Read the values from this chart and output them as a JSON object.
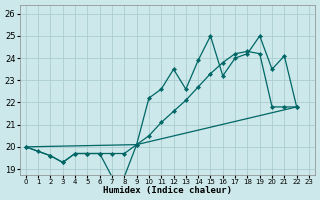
{
  "xlabel": "Humidex (Indice chaleur)",
  "xlim": [
    -0.5,
    23.5
  ],
  "ylim": [
    18.75,
    26.4
  ],
  "xticks": [
    0,
    1,
    2,
    3,
    4,
    5,
    6,
    7,
    8,
    9,
    10,
    11,
    12,
    13,
    14,
    15,
    16,
    17,
    18,
    19,
    20,
    21,
    22,
    23
  ],
  "yticks": [
    19,
    20,
    21,
    22,
    23,
    24,
    25,
    26
  ],
  "bg_color": "#cce8ea",
  "grid_color": "#aacdd0",
  "line_color": "#006666",
  "line1_x": [
    0,
    1,
    2,
    3,
    4,
    5,
    6,
    7,
    8,
    9,
    10,
    11,
    12,
    13,
    14,
    15,
    16,
    17,
    18,
    19,
    20,
    21,
    22
  ],
  "line1_y": [
    20.0,
    19.8,
    19.6,
    19.3,
    19.7,
    19.7,
    19.7,
    18.65,
    18.65,
    20.1,
    22.2,
    22.6,
    23.5,
    22.6,
    23.9,
    25.0,
    23.2,
    24.0,
    24.2,
    25.0,
    23.5,
    24.1,
    21.8
  ],
  "line2_x": [
    0,
    2,
    3,
    4,
    5,
    6,
    7,
    8,
    9,
    10,
    11,
    12,
    13,
    14,
    15,
    16,
    17,
    18,
    19,
    20,
    21,
    22
  ],
  "line2_y": [
    20.0,
    19.6,
    19.3,
    19.7,
    19.7,
    19.7,
    19.7,
    19.7,
    20.1,
    20.5,
    21.1,
    21.6,
    22.1,
    22.7,
    23.3,
    23.8,
    24.2,
    24.3,
    24.2,
    21.8,
    21.8,
    21.8
  ],
  "line3_x": [
    0,
    9,
    22
  ],
  "line3_y": [
    20.0,
    20.1,
    21.8
  ]
}
